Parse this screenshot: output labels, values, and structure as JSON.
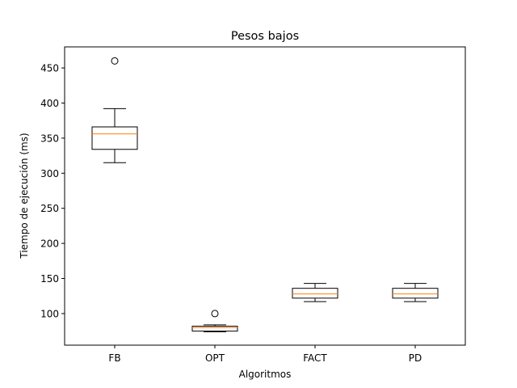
{
  "chart_data": {
    "type": "box",
    "title": "Pesos bajos",
    "xlabel": "Algoritmos",
    "ylabel": "Tiempo de ejecución (ms)",
    "categories": [
      "FB",
      "OPT",
      "FACT",
      "PD"
    ],
    "ylim": [
      55,
      480
    ],
    "yticks": [
      100,
      150,
      200,
      250,
      300,
      350,
      400,
      450
    ],
    "grid": false,
    "boxes": [
      {
        "category": "FB",
        "whisker_low": 315,
        "q1": 334,
        "median": 356,
        "q3": 366,
        "whisker_high": 392,
        "outliers": [
          460
        ]
      },
      {
        "category": "OPT",
        "whisker_low": 74,
        "q1": 75,
        "median": 80,
        "q3": 82,
        "whisker_high": 84,
        "outliers": [
          100
        ]
      },
      {
        "category": "FACT",
        "whisker_low": 117,
        "q1": 122,
        "median": 128,
        "q3": 136,
        "whisker_high": 143,
        "outliers": []
      },
      {
        "category": "PD",
        "whisker_low": 117,
        "q1": 122,
        "median": 128,
        "q3": 136,
        "whisker_high": 143,
        "outliers": []
      }
    ],
    "colors": {
      "box": "#000000",
      "median": "#ff7f0e",
      "outlier": "#000000"
    }
  }
}
